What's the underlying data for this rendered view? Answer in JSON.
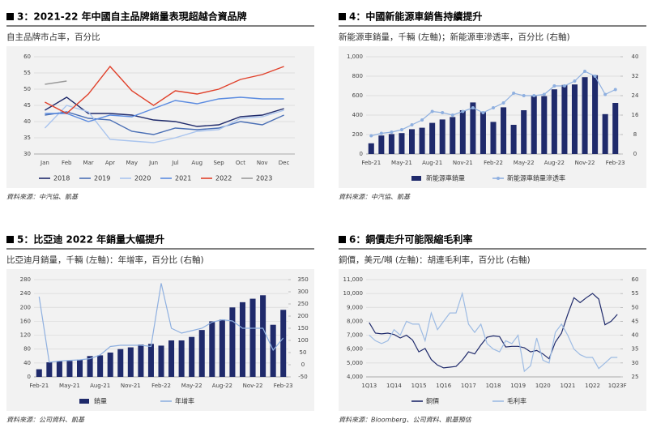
{
  "chart_data": [
    {
      "type": "line",
      "title": "3：2021-22 年中國自主品牌銷量表現超越合資品牌",
      "subtitle": "自主品牌市占率，百分比",
      "source": "資料來源：中汽協、凱基",
      "categories": [
        "Jan",
        "Feb",
        "Mar",
        "Apr",
        "May",
        "Jun",
        "Jul",
        "Aug",
        "Sep",
        "Oct",
        "Nov",
        "Dec"
      ],
      "ylim": [
        30,
        60
      ],
      "yticks": [
        30,
        35,
        40,
        45,
        50,
        55,
        60
      ],
      "grid": true,
      "series": [
        {
          "name": "2018",
          "color": "#1f2a6b",
          "values": [
            43.5,
            47.5,
            42.5,
            42.5,
            42,
            40.5,
            40,
            38.5,
            39,
            41.5,
            42,
            44
          ]
        },
        {
          "name": "2019",
          "color": "#4a6fb5",
          "values": [
            42,
            43,
            41,
            40.5,
            37,
            36,
            38,
            37.5,
            38,
            40,
            39,
            42
          ]
        },
        {
          "name": "2020",
          "color": "#a9c4ee",
          "values": [
            38,
            45,
            43,
            34.5,
            34,
            33.5,
            35,
            37,
            37.5,
            41,
            41.5,
            43.5
          ]
        },
        {
          "name": "2021",
          "color": "#5b8be0",
          "values": [
            42.5,
            42.5,
            40,
            42,
            41.5,
            44,
            46.5,
            45.5,
            47,
            47.5,
            47,
            47
          ]
        },
        {
          "name": "2022",
          "color": "#e0402a",
          "values": [
            46,
            42.5,
            48.5,
            57,
            49.5,
            45,
            49.5,
            48.5,
            50,
            53,
            54.5,
            57
          ]
        },
        {
          "name": "2023",
          "color": "#9a9a9a",
          "values": [
            51.5,
            52.5,
            null,
            null,
            null,
            null,
            null,
            null,
            null,
            null,
            null,
            null
          ]
        }
      ]
    },
    {
      "type": "combo",
      "title": "4：中國新能源車銷售持續提升",
      "subtitle": "新能源車銷量，千輛 (左軸)；新能源車滲透率，百分比 (右軸)",
      "source": "資料來源：中汽協、凱基",
      "categories": [
        "Feb-21",
        null,
        null,
        "May-21",
        null,
        null,
        "Aug-21",
        null,
        null,
        "Nov-21",
        null,
        null,
        "Feb-22",
        null,
        null,
        "May-22",
        null,
        null,
        "Aug-22",
        null,
        null,
        "Nov-22",
        null,
        null,
        "Feb-23"
      ],
      "ylim": [
        0,
        1000
      ],
      "yticks": [
        0,
        200,
        400,
        600,
        800,
        {
          "value": 1000,
          "label": "1,000"
        }
      ],
      "y2lim": [
        0,
        40
      ],
      "y2ticks": [
        0,
        8,
        16,
        24,
        32,
        40
      ],
      "grid": true,
      "series": [
        {
          "name": "新能源車銷量",
          "type": "bar",
          "color": "#1f2a6b",
          "values": [
            110,
            190,
            205,
            215,
            255,
            270,
            320,
            355,
            380,
            450,
            530,
            430,
            330,
            480,
            300,
            450,
            595,
            595,
            665,
            710,
            715,
            790,
            810,
            410,
            525
          ]
        },
        {
          "name": "新能源車銷量滲透率",
          "type": "line",
          "axis": "y2",
          "marker": true,
          "color": "#8fb0e0",
          "values": [
            7.5,
            8.5,
            9,
            10,
            12,
            14,
            17.5,
            17,
            16,
            17.5,
            19,
            17,
            19,
            21,
            25,
            24,
            24,
            24.5,
            28,
            28,
            30,
            34,
            32,
            24.5,
            26.5
          ]
        }
      ]
    },
    {
      "type": "combo",
      "title": "5：比亞迪 2022 年銷量大幅提升",
      "subtitle": "比亞迪月銷量，千輛 (左軸)：年增率，百分比 (右軸)",
      "source": "資料來源：公司資料、凱基",
      "categories": [
        "Feb-21",
        null,
        null,
        "May-21",
        null,
        null,
        "Aug-21",
        null,
        null,
        "Nov-21",
        null,
        null,
        "Feb-22",
        null,
        null,
        "May-22",
        null,
        null,
        "Aug-22",
        null,
        null,
        "Nov-22",
        null,
        null,
        "Feb-23"
      ],
      "ylim": [
        0,
        280
      ],
      "yticks": [
        0,
        40,
        80,
        120,
        160,
        200,
        240,
        280
      ],
      "y2lim": [
        -50,
        350
      ],
      "y2ticks": [
        -50,
        0,
        50,
        100,
        150,
        200,
        250,
        300,
        350
      ],
      "grid": true,
      "series": [
        {
          "name": "銷量",
          "type": "bar",
          "color": "#1f2a6b",
          "values": [
            22,
            42,
            45,
            46,
            50,
            60,
            62,
            70,
            80,
            85,
            93,
            95,
            90,
            105,
            105,
            115,
            135,
            160,
            165,
            200,
            215,
            225,
            235,
            150,
            193
          ]
        },
        {
          "name": "年增率",
          "type": "line",
          "axis": "y2",
          "color": "#8fb0e0",
          "values": [
            280,
            10,
            15,
            18,
            20,
            25,
            40,
            75,
            80,
            80,
            80,
            75,
            335,
            150,
            130,
            140,
            150,
            175,
            185,
            180,
            150,
            150,
            150,
            60,
            110
          ]
        }
      ]
    },
    {
      "type": "line",
      "title": "6：銅價走升可能限縮毛利率",
      "subtitle": "銅價，美元/噸 (左軸)：胡連毛利率，百分比 (右軸)",
      "source": "資料來源：Bloomberg、公司資料、凱基預估",
      "categories": [
        "1Q13",
        null,
        null,
        null,
        "1Q14",
        null,
        null,
        null,
        "1Q15",
        null,
        null,
        null,
        "1Q16",
        null,
        null,
        null,
        "1Q17",
        null,
        null,
        null,
        "1Q18",
        null,
        null,
        null,
        "1Q19",
        null,
        null,
        null,
        "1Q20",
        null,
        null,
        null,
        "1Q21",
        null,
        null,
        null,
        "1Q22",
        null,
        null,
        null,
        "1Q23F"
      ],
      "ylim": [
        4000,
        11000
      ],
      "yticks": [
        {
          "value": 4000,
          "label": "4,000"
        },
        {
          "value": 5000,
          "label": "5,000"
        },
        {
          "value": 6000,
          "label": "6,000"
        },
        {
          "value": 7000,
          "label": "7,000"
        },
        {
          "value": 8000,
          "label": "8,000"
        },
        {
          "value": 9000,
          "label": "9,000"
        },
        {
          "value": 10000,
          "label": "10,000"
        },
        {
          "value": 11000,
          "label": "11,000"
        }
      ],
      "y2lim": [
        25,
        60
      ],
      "y2ticks": [
        25,
        30,
        35,
        40,
        45,
        50,
        55,
        60
      ],
      "grid": true,
      "series": [
        {
          "name": "銅價",
          "color": "#1f2a6b",
          "values": [
            7900,
            7150,
            7100,
            7150,
            7050,
            6800,
            7000,
            6650,
            5800,
            6050,
            5250,
            4850,
            4650,
            4700,
            4750,
            5200,
            5800,
            5650,
            6300,
            6850,
            6950,
            6900,
            6150,
            6200,
            6200,
            6100,
            5800,
            5900,
            5650,
            5300,
            6500,
            7150,
            8500,
            9700,
            9350,
            9700,
            10000,
            9600,
            7750,
            8000,
            8500
          ]
        },
        {
          "name": "毛利率",
          "axis": "y2",
          "color": "#9dbbe3",
          "values": [
            40,
            38,
            37,
            38,
            42,
            40,
            45,
            44,
            44,
            38,
            48,
            42,
            45,
            48,
            48,
            55,
            44,
            41,
            44,
            37,
            35,
            34,
            38,
            37,
            40,
            27,
            29,
            39,
            31,
            30,
            41,
            44,
            40,
            35,
            33,
            32,
            32,
            28,
            30,
            32,
            32
          ]
        }
      ]
    }
  ]
}
